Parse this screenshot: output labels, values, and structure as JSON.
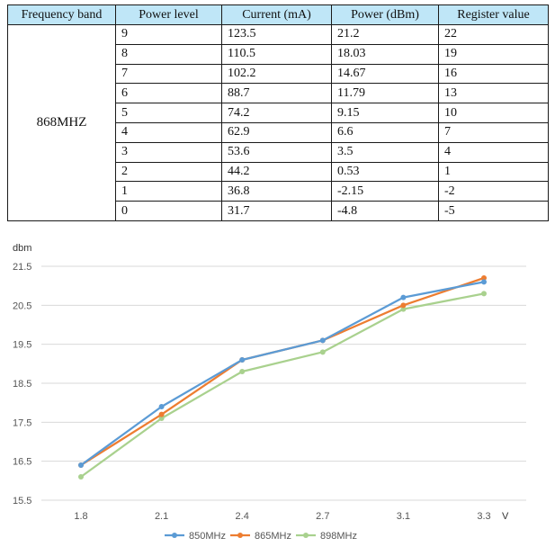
{
  "table": {
    "headers": [
      "Frequency band",
      "Power level",
      "Current (mA)",
      "Power (dBm)",
      "Register value"
    ],
    "band": "868MHZ",
    "rows": [
      [
        "9",
        "123.5",
        "21.2",
        "22"
      ],
      [
        "8",
        "110.5",
        "18.03",
        "19"
      ],
      [
        "7",
        "102.2",
        "14.67",
        "16"
      ],
      [
        "6",
        "88.7",
        "11.79",
        "13"
      ],
      [
        "5",
        "74.2",
        "9.15",
        "10"
      ],
      [
        "4",
        "62.9",
        "6.6",
        "7"
      ],
      [
        "3",
        "53.6",
        "3.5",
        "4"
      ],
      [
        "2",
        "44.2",
        "0.53",
        "1"
      ],
      [
        "1",
        "36.8",
        "-2.15",
        "-2"
      ],
      [
        "0",
        "31.7",
        "-4.8",
        "-5"
      ]
    ]
  },
  "chart_data": {
    "type": "line",
    "title": "",
    "ylabel": "dbm",
    "xlabel": "V",
    "categories": [
      "1.8",
      "2.1",
      "2.4",
      "2.7",
      "3.1",
      "3.3"
    ],
    "yticks": [
      "15.5",
      "16.5",
      "17.5",
      "18.5",
      "19.5",
      "20.5",
      "21.5"
    ],
    "ylim": [
      15.5,
      21.5
    ],
    "grid": true,
    "legend_position": "bottom",
    "series": [
      {
        "name": "850MHz",
        "color": "#5b9bd5",
        "values": [
          16.4,
          17.9,
          19.1,
          19.6,
          20.7,
          21.1
        ]
      },
      {
        "name": "865MHz",
        "color": "#ed7d31",
        "values": [
          16.4,
          17.7,
          19.1,
          19.6,
          20.5,
          21.2
        ]
      },
      {
        "name": "898MHz",
        "color": "#a9d18e",
        "values": [
          16.1,
          17.6,
          18.8,
          19.3,
          20.4,
          20.8
        ]
      }
    ]
  }
}
